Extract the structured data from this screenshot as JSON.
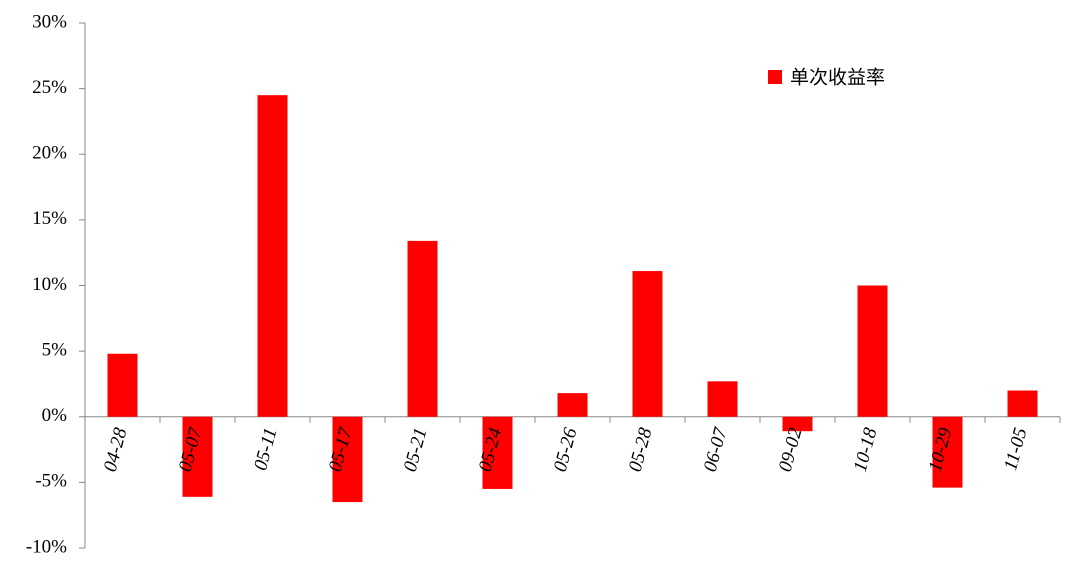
{
  "chart_data": {
    "type": "bar",
    "categories": [
      "04-28",
      "05-07",
      "05-11",
      "05-17",
      "05-21",
      "05-24",
      "05-26",
      "05-28",
      "06-07",
      "09-02",
      "10-18",
      "10-29",
      "11-05"
    ],
    "series": [
      {
        "name": "单次收益率",
        "color": "#ff0000",
        "values": [
          4.8,
          -6.1,
          24.5,
          -6.5,
          13.4,
          -5.5,
          1.8,
          11.1,
          2.7,
          -1.1,
          10.0,
          -5.4,
          2.0
        ]
      }
    ],
    "ylim": [
      -10,
      30
    ],
    "yticks": [
      {
        "value": -10,
        "label": "-10%"
      },
      {
        "value": -5,
        "label": "-5%"
      },
      {
        "value": 0,
        "label": "0%"
      },
      {
        "value": 5,
        "label": "5%"
      },
      {
        "value": 10,
        "label": "10%"
      },
      {
        "value": 15,
        "label": "15%"
      },
      {
        "value": 20,
        "label": "20%"
      },
      {
        "value": 25,
        "label": "25%"
      },
      {
        "value": 30,
        "label": "30%"
      }
    ],
    "grid": false,
    "legend": "top-right"
  }
}
